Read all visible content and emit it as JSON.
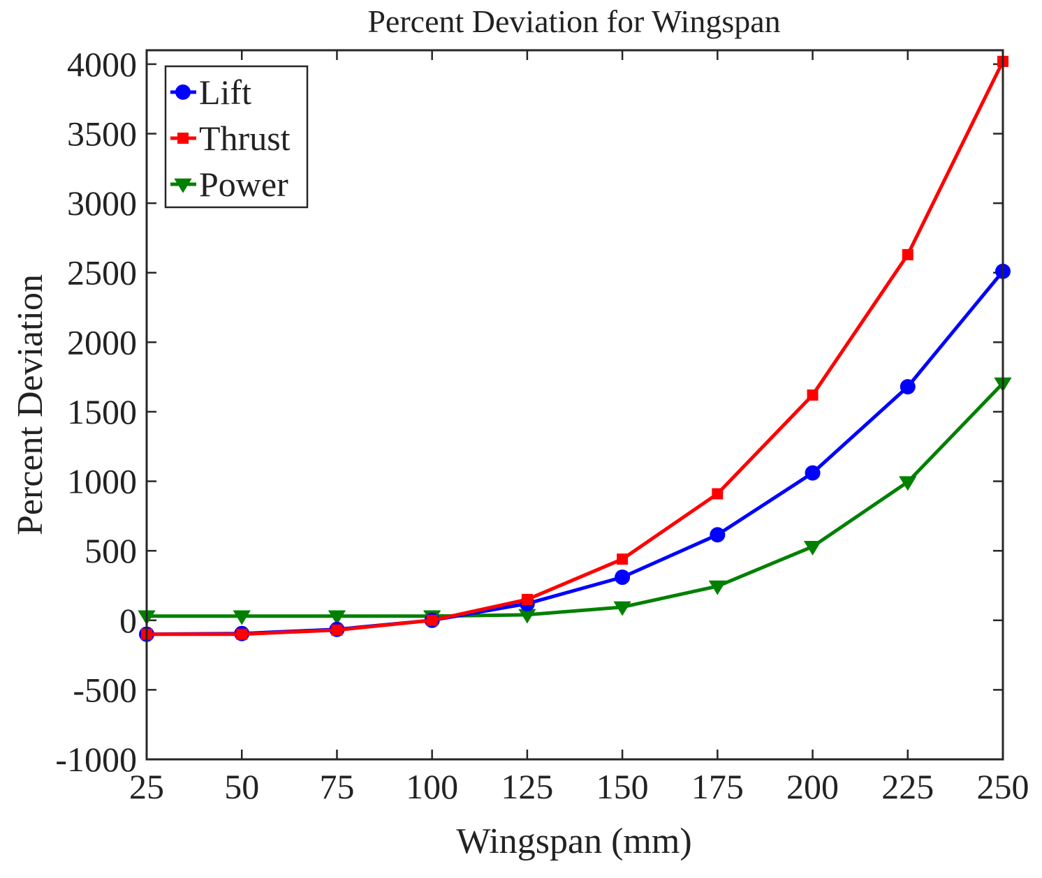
{
  "chart_data": {
    "type": "line",
    "title": "Percent Deviation for Wingspan",
    "xlabel": "Wingspan (mm)",
    "ylabel": "Percent Deviation",
    "x": [
      25,
      50,
      75,
      100,
      125,
      150,
      175,
      200,
      225,
      250
    ],
    "x_tick_labels": [
      "25",
      "50",
      "75",
      "100",
      "125",
      "150",
      "175",
      "200",
      "225",
      "250"
    ],
    "y_tick_values": [
      -1000,
      -500,
      0,
      500,
      1000,
      1500,
      2000,
      2500,
      3000,
      3500,
      4000
    ],
    "y_tick_labels": [
      "-1000",
      "-500",
      "0",
      "500",
      "1000",
      "1500",
      "2000",
      "2500",
      "3000",
      "3500",
      "4000"
    ],
    "xlim": [
      25,
      250
    ],
    "ylim": [
      -1000,
      4100
    ],
    "grid": false,
    "legend_position": "top-left",
    "series": [
      {
        "name": "Lift",
        "color": "#0000ff",
        "marker": "circle",
        "values": [
          -100,
          -95,
          -65,
          0,
          120,
          310,
          615,
          1060,
          1680,
          2510
        ]
      },
      {
        "name": "Thrust",
        "color": "#ff0000",
        "marker": "square",
        "values": [
          -100,
          -100,
          -70,
          0,
          150,
          440,
          910,
          1620,
          2630,
          4020
        ]
      },
      {
        "name": "Power",
        "color": "#008000",
        "marker": "triangle-down",
        "values": [
          30,
          30,
          30,
          30,
          40,
          95,
          245,
          530,
          995,
          1705
        ]
      }
    ]
  }
}
